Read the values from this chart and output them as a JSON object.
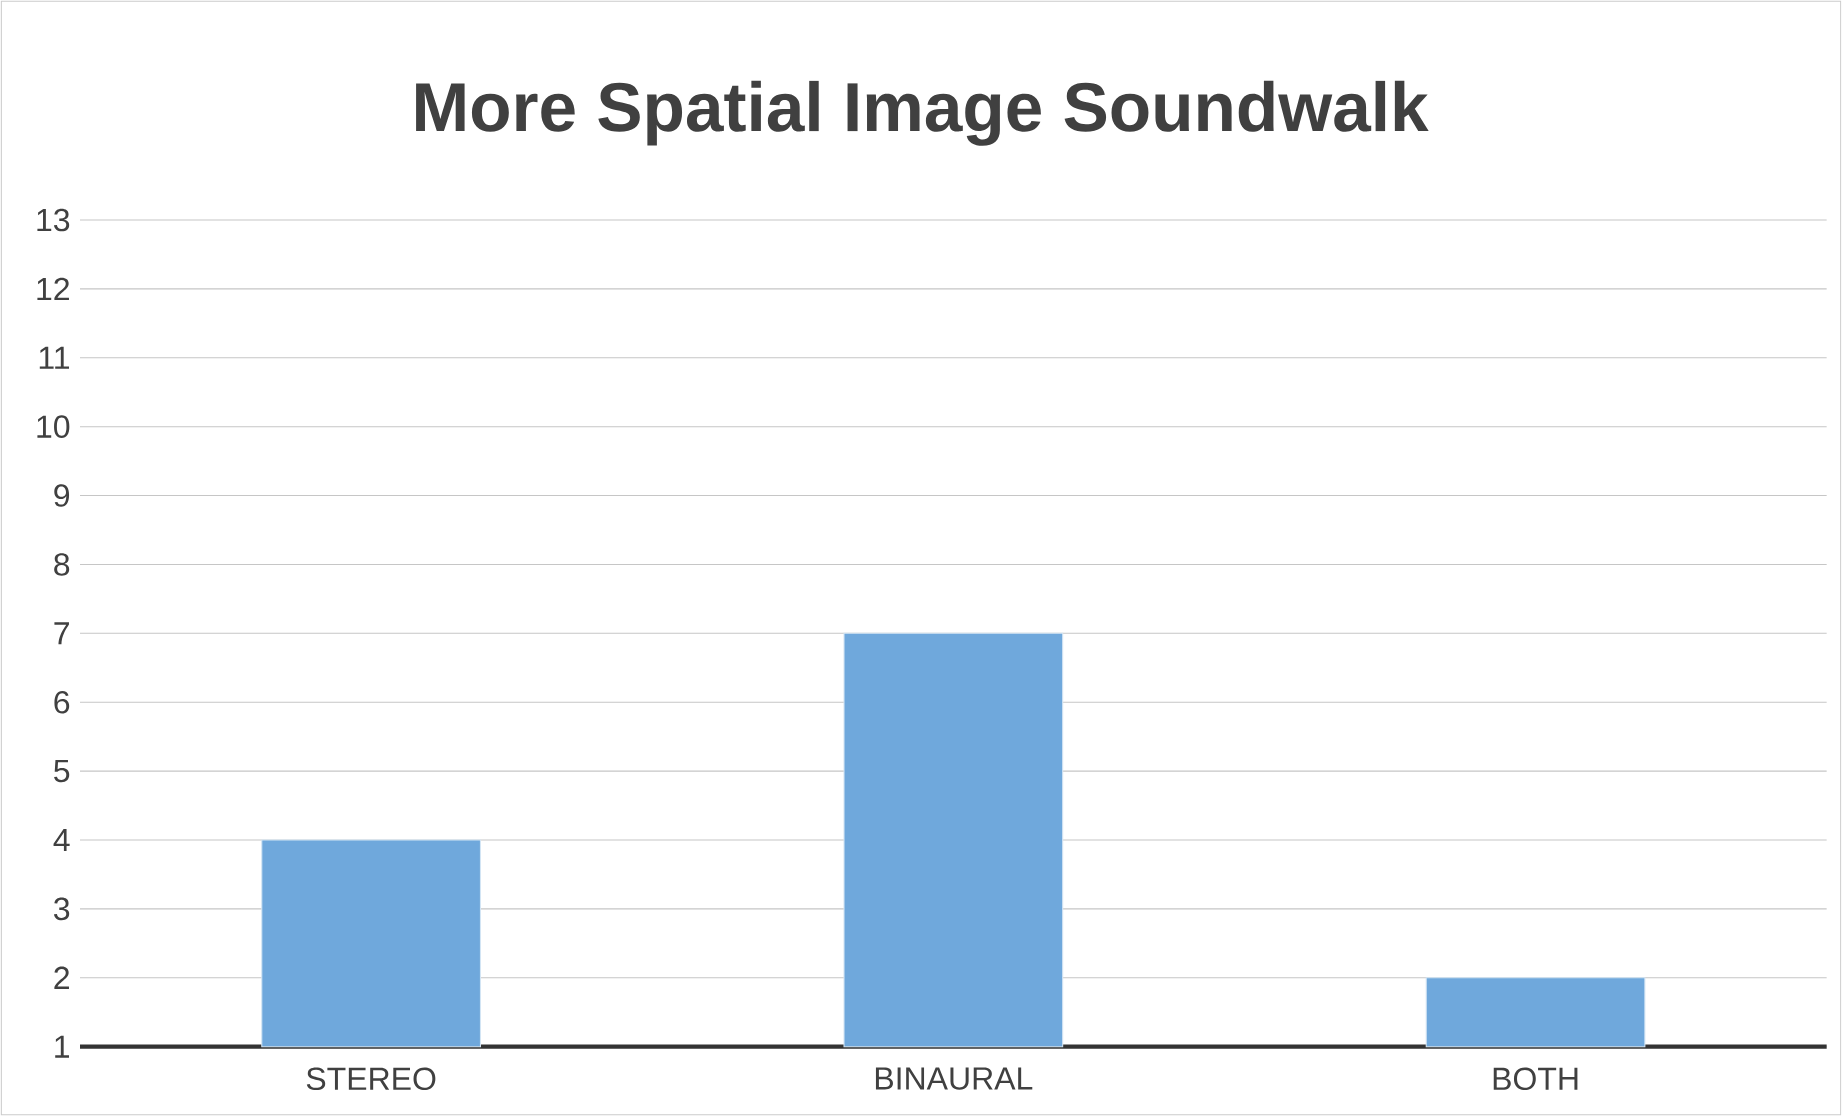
{
  "chart_data": {
    "type": "bar",
    "title": "More Spatial Image Soundwalk",
    "categories": [
      "STEREO",
      "BINAURAL",
      "BOTH"
    ],
    "values": [
      4,
      7,
      2
    ],
    "color": "#6fa8dc",
    "ylim": [
      1,
      13
    ],
    "yticks": [
      1,
      2,
      3,
      4,
      5,
      6,
      7,
      8,
      9,
      10,
      11,
      12,
      13
    ],
    "grid": "y"
  }
}
